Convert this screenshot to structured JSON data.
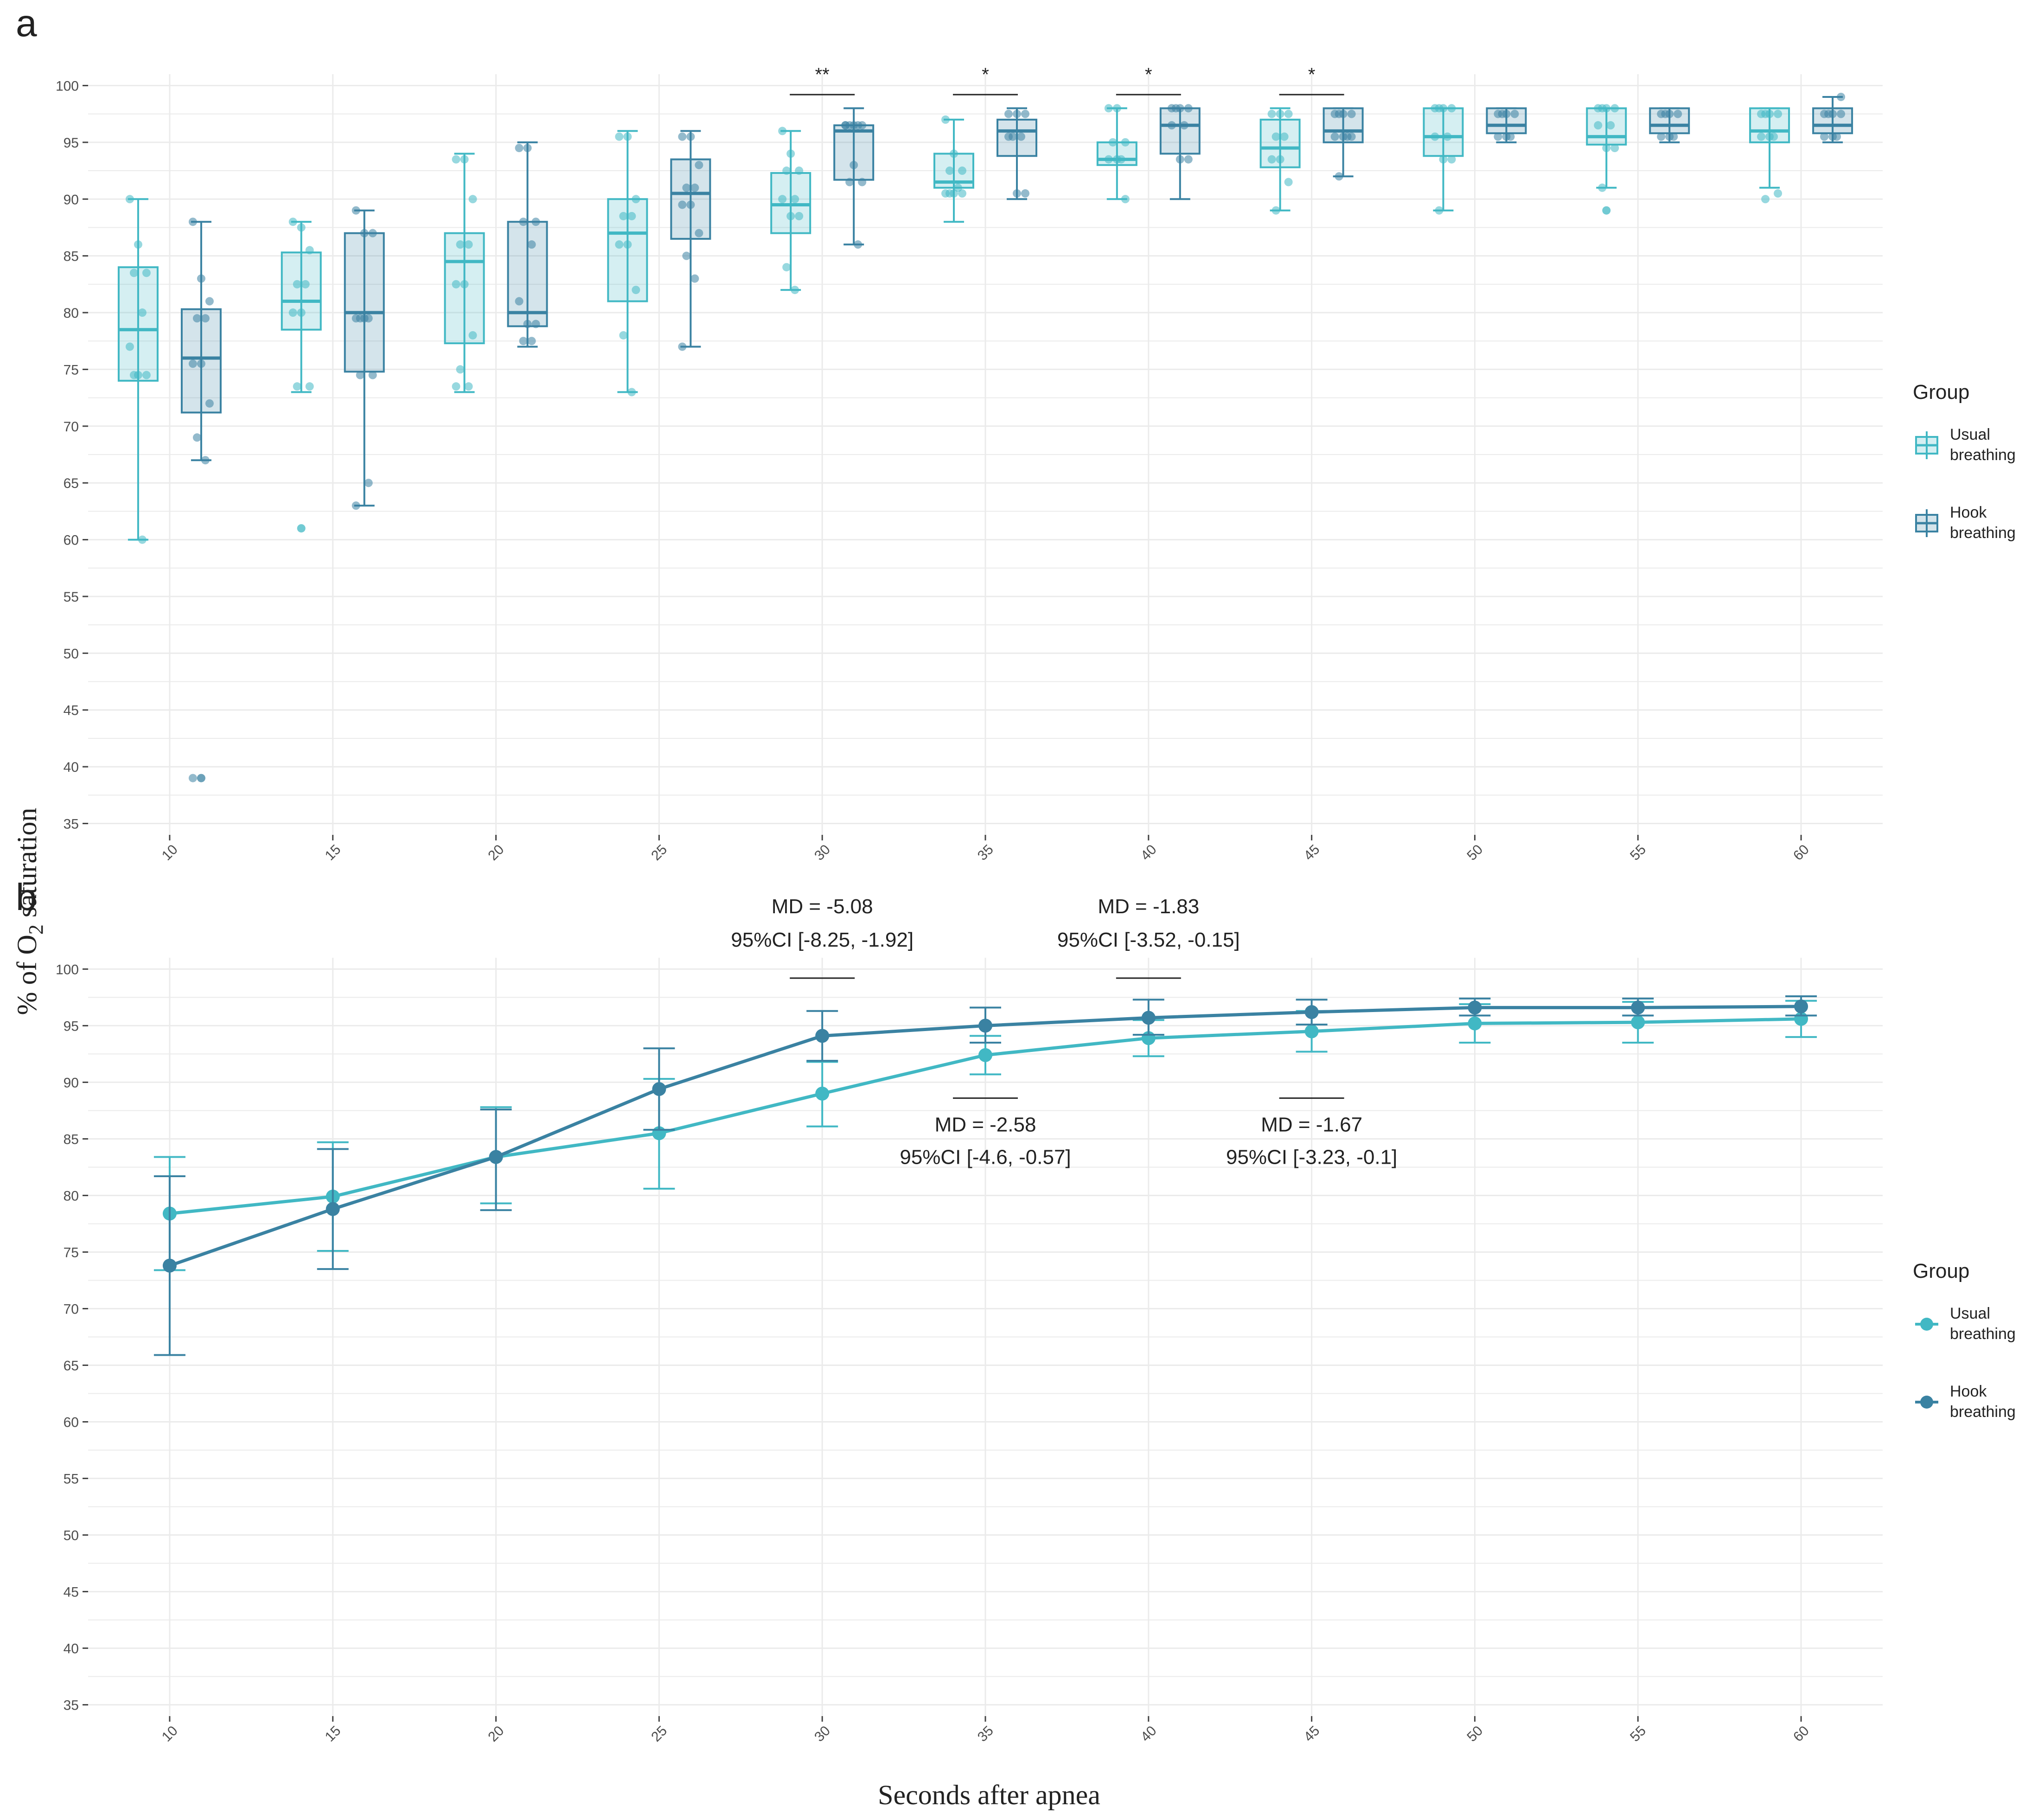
{
  "figure": {
    "ylabel_prefix": "% of O",
    "ylabel_sub": "2",
    "ylabel_suffix": " saturation",
    "xlabel": "Seconds after apnea",
    "colors": {
      "usual": "#41b8c4",
      "hook": "#3a82a2",
      "grid": "#ebebeb",
      "axis_text": "#4d4d4d"
    },
    "group_title": "Group",
    "groups": [
      {
        "key": "usual",
        "label_line1": "Usual",
        "label_line2": "breathing",
        "icon": "box-legend-icon"
      },
      {
        "key": "hook",
        "label_line1": "Hook",
        "label_line2": "breathing",
        "icon": "box-legend-icon"
      }
    ]
  },
  "chart_data": [
    {
      "panel": "a",
      "type": "box",
      "categories": [
        "10",
        "15",
        "20",
        "25",
        "30",
        "35",
        "40",
        "45",
        "50",
        "55",
        "60"
      ],
      "y_ticks": [
        "35",
        "40",
        "45",
        "50",
        "55",
        "60",
        "65",
        "70",
        "75",
        "80",
        "85",
        "90",
        "95",
        "100"
      ],
      "ylim": [
        34,
        101
      ],
      "legend_title": "Group",
      "series": [
        {
          "name": "Usual breathing",
          "boxes": [
            {
              "min": 60,
              "q1": 74,
              "median": 78.5,
              "q3": 84,
              "max": 90,
              "outliers": []
            },
            {
              "min": 73,
              "q1": 78.5,
              "median": 81,
              "q3": 85.3,
              "max": 88,
              "outliers": [
                61
              ]
            },
            {
              "min": 73,
              "q1": 77.3,
              "median": 84.5,
              "q3": 87,
              "max": 94,
              "outliers": []
            },
            {
              "min": 73,
              "q1": 81,
              "median": 87,
              "q3": 90,
              "max": 96,
              "outliers": []
            },
            {
              "min": 82,
              "q1": 87,
              "median": 89.5,
              "q3": 92.3,
              "max": 96,
              "outliers": []
            },
            {
              "min": 88,
              "q1": 91,
              "median": 91.5,
              "q3": 94,
              "max": 97,
              "outliers": []
            },
            {
              "min": 90,
              "q1": 93,
              "median": 93.5,
              "q3": 95,
              "max": 98,
              "outliers": []
            },
            {
              "min": 89,
              "q1": 92.8,
              "median": 94.5,
              "q3": 97,
              "max": 98,
              "outliers": []
            },
            {
              "min": 89,
              "q1": 93.8,
              "median": 95.5,
              "q3": 98,
              "max": 98,
              "outliers": []
            },
            {
              "min": 91,
              "q1": 94.8,
              "median": 95.5,
              "q3": 98,
              "max": 98,
              "outliers": [
                89
              ]
            },
            {
              "min": 91,
              "q1": 95,
              "median": 96,
              "q3": 98,
              "max": 98,
              "outliers": []
            }
          ],
          "points": [
            [
              90,
              86,
              83.5,
              83.5,
              80,
              77,
              74.5,
              74.5,
              74.5,
              60
            ],
            [
              88,
              87.5,
              85.5,
              82.5,
              82.5,
              80,
              80,
              73.5,
              73.5
            ],
            [
              93.5,
              93.5,
              90,
              86,
              86,
              82.5,
              82.5,
              78,
              75,
              73.5,
              73.5
            ],
            [
              95.5,
              95.5,
              90,
              88.5,
              88.5,
              86,
              86,
              82,
              78,
              73
            ],
            [
              96,
              94,
              92.5,
              92.5,
              90,
              90,
              88.5,
              88.5,
              84,
              82
            ],
            [
              97,
              94,
              92.5,
              92.5,
              91,
              90.5,
              90.5,
              90.5,
              90.5
            ],
            [
              98,
              98,
              95,
              95,
              93.5,
              93.5,
              93.5,
              90
            ],
            [
              97.5,
              97.5,
              97.5,
              95.5,
              95.5,
              93.5,
              93.5,
              91.5,
              89
            ],
            [
              98,
              98,
              98,
              98,
              95.5,
              95.5,
              93.5,
              93.5,
              89
            ],
            [
              98,
              98,
              98,
              98,
              96.5,
              96.5,
              94.5,
              94.5,
              91
            ],
            [
              97.5,
              97.5,
              97.5,
              97.5,
              95.5,
              95.5,
              95.5,
              90.5,
              90
            ]
          ]
        },
        {
          "name": "Hook breathing",
          "boxes": [
            {
              "min": 67,
              "q1": 71.2,
              "median": 76,
              "q3": 80.3,
              "max": 88,
              "outliers": [
                39
              ]
            },
            {
              "min": 63,
              "q1": 74.8,
              "median": 80,
              "q3": 87,
              "max": 89,
              "outliers": []
            },
            {
              "min": 77,
              "q1": 78.8,
              "median": 80,
              "q3": 88,
              "max": 95,
              "outliers": []
            },
            {
              "min": 77,
              "q1": 86.5,
              "median": 90.5,
              "q3": 93.5,
              "max": 96,
              "outliers": []
            },
            {
              "min": 86,
              "q1": 91.7,
              "median": 96,
              "q3": 96.5,
              "max": 98,
              "outliers": []
            },
            {
              "min": 90,
              "q1": 93.8,
              "median": 96,
              "q3": 97,
              "max": 98,
              "outliers": []
            },
            {
              "min": 90,
              "q1": 94,
              "median": 96.5,
              "q3": 98,
              "max": 98,
              "outliers": []
            },
            {
              "min": 92,
              "q1": 95,
              "median": 96,
              "q3": 98,
              "max": 98,
              "outliers": []
            },
            {
              "min": 95,
              "q1": 95.8,
              "median": 96.5,
              "q3": 98,
              "max": 98,
              "outliers": []
            },
            {
              "min": 95,
              "q1": 95.8,
              "median": 96.5,
              "q3": 98,
              "max": 98,
              "outliers": []
            },
            {
              "min": 95,
              "q1": 95.8,
              "median": 96.5,
              "q3": 98,
              "max": 99,
              "outliers": []
            }
          ],
          "points": [
            [
              88,
              83,
              81,
              79.5,
              79.5,
              75.5,
              75.5,
              72,
              69,
              67,
              39
            ],
            [
              89,
              87,
              87,
              79.5,
              79.5,
              79.5,
              79.5,
              74.5,
              74.5,
              65,
              63
            ],
            [
              94.5,
              94.5,
              88,
              88,
              86,
              81,
              79,
              79,
              77.5,
              77.5
            ],
            [
              95.5,
              95.5,
              93,
              91,
              91,
              89.5,
              89.5,
              87,
              85,
              83,
              77
            ],
            [
              96.5,
              96.5,
              96.5,
              96.5,
              96.5,
              96.5,
              93,
              91.5,
              91.5,
              86
            ],
            [
              97.5,
              97.5,
              97.5,
              95.5,
              95.5,
              95.5,
              90.5,
              90.5
            ],
            [
              98,
              98,
              98,
              98,
              96.5,
              96.5,
              93.5,
              93.5
            ],
            [
              97.5,
              97.5,
              97.5,
              97.5,
              95.5,
              95.5,
              95.5,
              95.5,
              92
            ],
            [
              97.5,
              97.5,
              97.5,
              97.5,
              95.5,
              95.5,
              95.5
            ],
            [
              97.5,
              97.5,
              97.5,
              97.5,
              95.5,
              95.5,
              95.5
            ],
            [
              97.5,
              97.5,
              97.5,
              97.5,
              95.5,
              95.5,
              95.5,
              99
            ]
          ]
        }
      ],
      "significance": [
        {
          "category": "30",
          "label": "**"
        },
        {
          "category": "35",
          "label": "*"
        },
        {
          "category": "40",
          "label": "*"
        },
        {
          "category": "45",
          "label": "*"
        }
      ]
    },
    {
      "panel": "b",
      "type": "line",
      "x": [
        "10",
        "15",
        "20",
        "25",
        "30",
        "35",
        "40",
        "45",
        "50",
        "55",
        "60"
      ],
      "y_ticks": [
        "35",
        "40",
        "45",
        "50",
        "55",
        "60",
        "65",
        "70",
        "75",
        "80",
        "85",
        "90",
        "95",
        "100"
      ],
      "ylim": [
        34,
        101
      ],
      "legend_title": "Group",
      "series": [
        {
          "name": "Usual breathing",
          "mean": [
            78.4,
            79.9,
            83.4,
            85.5,
            89.0,
            92.4,
            93.9,
            94.5,
            95.2,
            95.3,
            95.6
          ],
          "lower": [
            73.4,
            75.1,
            79.3,
            80.6,
            86.1,
            90.7,
            92.3,
            92.7,
            93.5,
            93.5,
            94.0
          ],
          "upper": [
            83.4,
            84.7,
            87.8,
            90.3,
            91.8,
            94.1,
            95.5,
            96.3,
            96.9,
            97.1,
            97.2
          ]
        },
        {
          "name": "Hook breathing",
          "mean": [
            73.8,
            78.8,
            83.4,
            89.4,
            94.1,
            95.0,
            95.7,
            96.2,
            96.6,
            96.6,
            96.7
          ],
          "lower": [
            65.9,
            73.5,
            78.7,
            85.8,
            91.9,
            93.5,
            94.2,
            95.1,
            95.9,
            95.9,
            95.9
          ],
          "upper": [
            81.7,
            84.1,
            87.6,
            93.0,
            96.3,
            96.6,
            97.3,
            97.3,
            97.4,
            97.4,
            97.6
          ]
        }
      ],
      "annotations": [
        {
          "category": "30",
          "line1": "MD = -5.08",
          "line2": "95%CI [-8.25, -1.92]",
          "placement": "above"
        },
        {
          "category": "35",
          "line1": "MD = -2.58",
          "line2": "95%CI [-4.6, -0.57]",
          "placement": "below"
        },
        {
          "category": "40",
          "line1": "MD = -1.83",
          "line2": "95%CI [-3.52, -0.15]",
          "placement": "above"
        },
        {
          "category": "45",
          "line1": "MD = -1.67",
          "line2": "95%CI [-3.23, -0.1]",
          "placement": "below"
        }
      ]
    }
  ]
}
